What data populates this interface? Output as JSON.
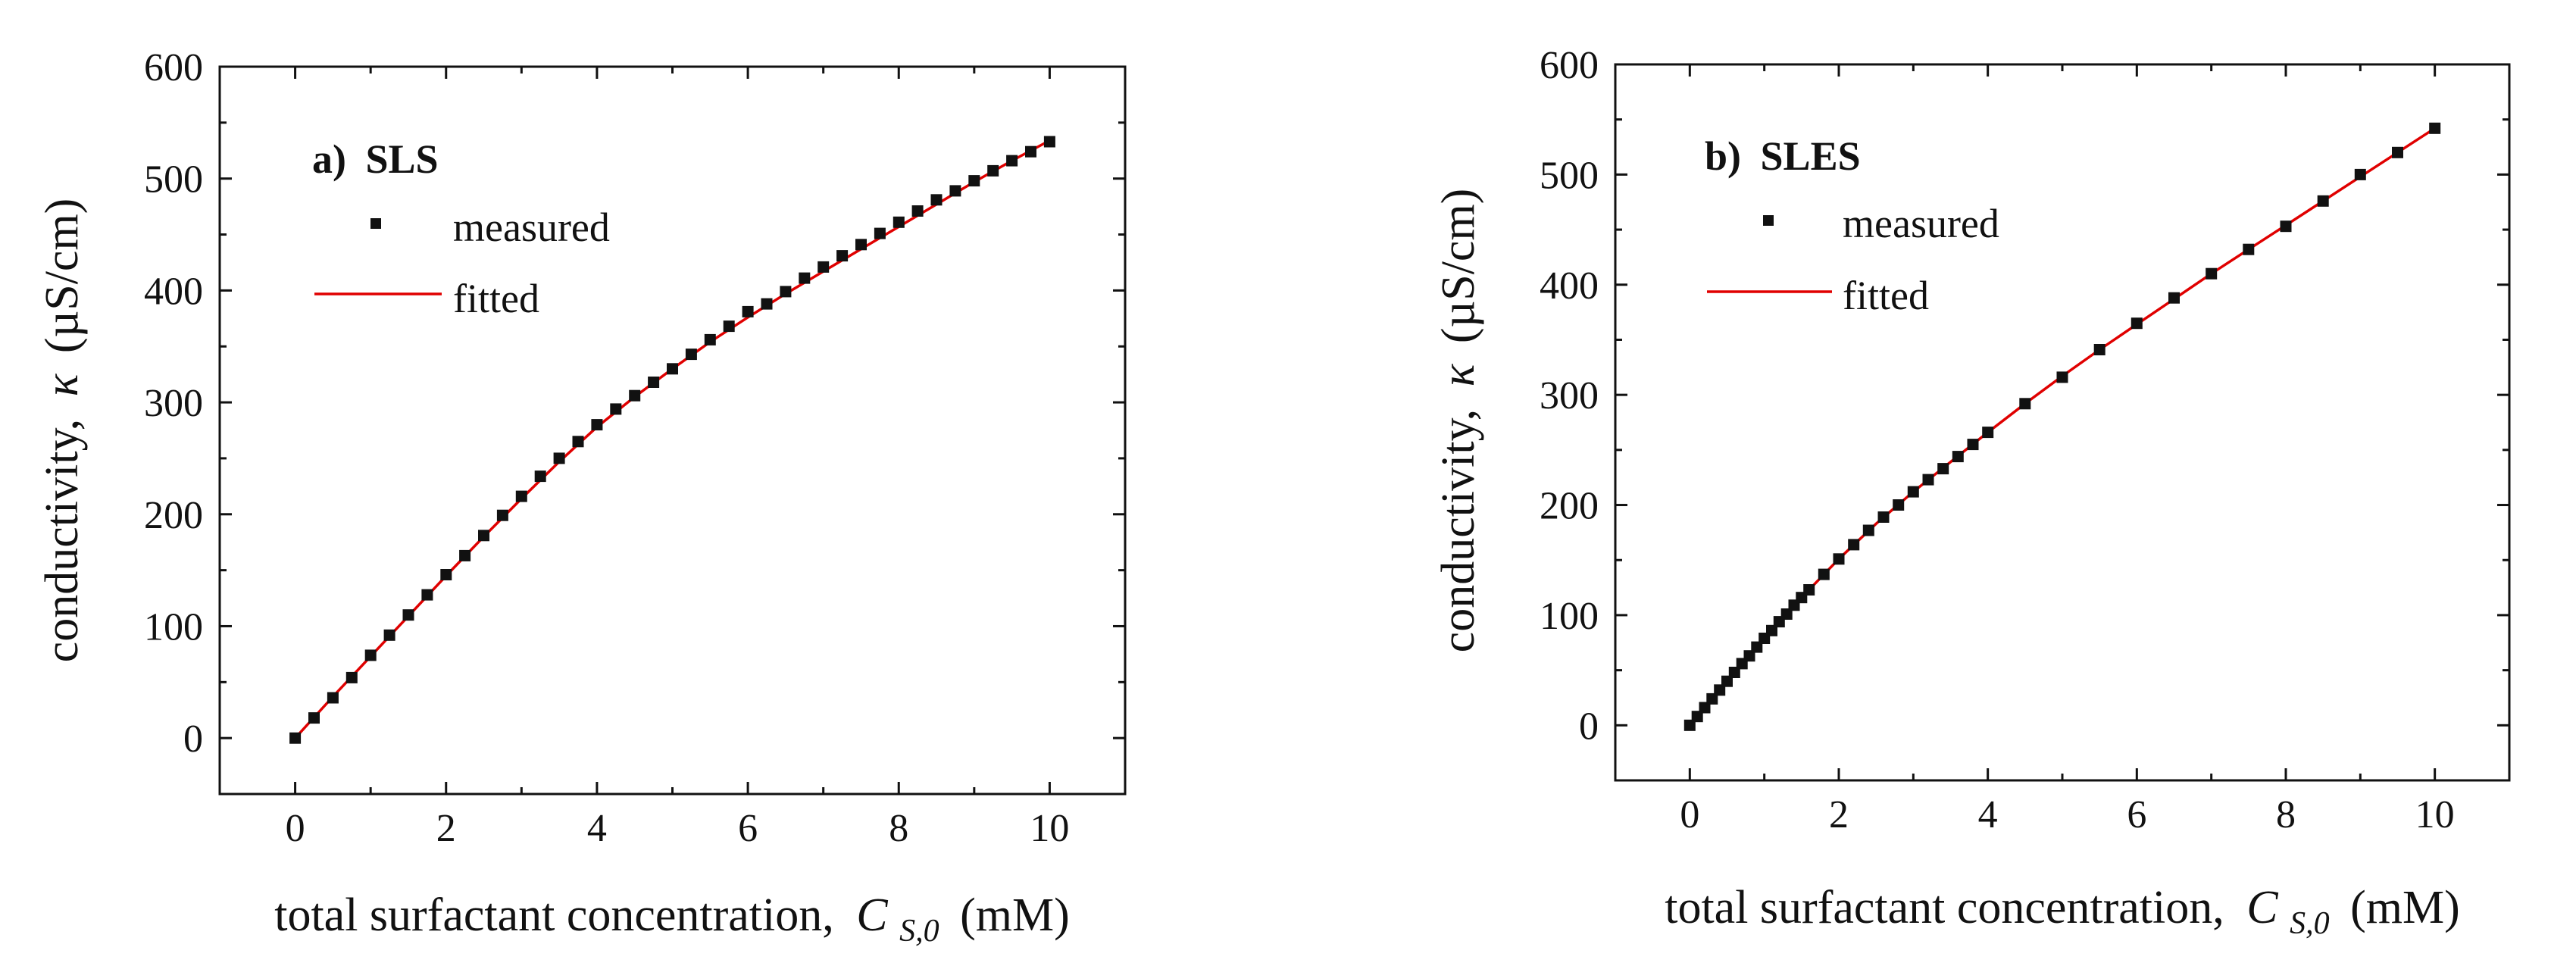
{
  "chart_data": [
    {
      "type": "scatter",
      "panel_label": "a)",
      "panel_name": "SLS",
      "xlabel_text": "total surfactant concentration,",
      "xlabel_var": "C",
      "xlabel_sub": "S,0",
      "xlabel_unit": "(mM)",
      "ylabel_text": "conductivity,",
      "ylabel_var": "κ",
      "ylabel_unit": "(µS/cm)",
      "xlim": [
        -1,
        11
      ],
      "ylim": [
        -50,
        600
      ],
      "xticks": [
        0,
        2,
        4,
        6,
        8,
        10
      ],
      "yticks": [
        0,
        100,
        200,
        300,
        400,
        500,
        600
      ],
      "legend_position": "top-left",
      "series": [
        {
          "name": "measured",
          "style": "markers",
          "color": "#111111",
          "x": [
            0,
            0.25,
            0.5,
            0.75,
            1.0,
            1.25,
            1.5,
            1.75,
            2.0,
            2.25,
            2.5,
            2.75,
            3.0,
            3.25,
            3.5,
            3.75,
            4.0,
            4.25,
            4.5,
            4.75,
            5.0,
            5.25,
            5.5,
            5.75,
            6.0,
            6.25,
            6.5,
            6.75,
            7.0,
            7.25,
            7.5,
            7.75,
            8.0,
            8.25,
            8.5,
            8.75,
            9.0,
            9.25,
            9.5,
            9.75,
            10.0
          ],
          "y": [
            0,
            18,
            36,
            54,
            74,
            92,
            110,
            128,
            146,
            163,
            181,
            199,
            216,
            234,
            250,
            265,
            280,
            294,
            306,
            318,
            330,
            343,
            356,
            368,
            381,
            388,
            399,
            411,
            421,
            431,
            441,
            451,
            461,
            471,
            481,
            489,
            498,
            507,
            516,
            524,
            533
          ]
        },
        {
          "name": "fitted",
          "style": "line",
          "color": "#e00000",
          "x": [
            0,
            0.5,
            1,
            1.5,
            2,
            2.5,
            3,
            3.5,
            4,
            4.5,
            5,
            5.5,
            6,
            6.5,
            7,
            7.5,
            8,
            8.5,
            9,
            9.5,
            10
          ],
          "y": [
            0,
            37,
            73,
            109,
            145,
            180,
            214,
            247,
            278,
            305,
            330,
            354,
            376,
            397,
            417,
            437,
            457,
            477,
            497,
            516,
            534
          ]
        }
      ]
    },
    {
      "type": "scatter",
      "panel_label": "b)",
      "panel_name": "SLES",
      "xlabel_text": "total surfactant concentration,",
      "xlabel_var": "C",
      "xlabel_sub": "S,0",
      "xlabel_unit": "(mM)",
      "ylabel_text": "conductivity,",
      "ylabel_var": "κ",
      "ylabel_unit": "(µS/cm)",
      "xlim": [
        -1,
        11
      ],
      "ylim": [
        -50,
        600
      ],
      "xticks": [
        0,
        2,
        4,
        6,
        8,
        10
      ],
      "yticks": [
        0,
        100,
        200,
        300,
        400,
        500,
        600
      ],
      "legend_position": "top-left",
      "series": [
        {
          "name": "measured",
          "style": "markers",
          "color": "#111111",
          "x": [
            0,
            0.1,
            0.2,
            0.3,
            0.4,
            0.5,
            0.6,
            0.7,
            0.8,
            0.9,
            1.0,
            1.1,
            1.2,
            1.3,
            1.4,
            1.5,
            1.6,
            1.8,
            2.0,
            2.2,
            2.4,
            2.6,
            2.8,
            3.0,
            3.2,
            3.4,
            3.6,
            3.8,
            4.0,
            4.5,
            5.0,
            5.5,
            6.0,
            6.5,
            7.0,
            7.5,
            8.0,
            8.5,
            9.0,
            9.5,
            10.0
          ],
          "y": [
            0,
            8,
            16,
            24,
            32,
            40,
            48,
            56,
            63,
            71,
            79,
            86,
            94,
            101,
            109,
            116,
            123,
            137,
            151,
            164,
            177,
            189,
            200,
            212,
            223,
            233,
            244,
            255,
            266,
            292,
            316,
            341,
            365,
            388,
            410,
            432,
            453,
            476,
            500,
            520,
            542
          ]
        },
        {
          "name": "fitted",
          "style": "line",
          "color": "#e00000",
          "x": [
            0,
            0.5,
            1,
            1.5,
            2,
            2.5,
            3,
            3.5,
            4,
            4.5,
            5,
            5.5,
            6,
            6.5,
            7,
            7.5,
            8,
            8.5,
            9,
            9.5,
            10
          ],
          "y": [
            0,
            40,
            79,
            116,
            151,
            183,
            212,
            239,
            266,
            292,
            317,
            341,
            364,
            387,
            410,
            432,
            454,
            476,
            498,
            520,
            542
          ]
        }
      ]
    }
  ]
}
